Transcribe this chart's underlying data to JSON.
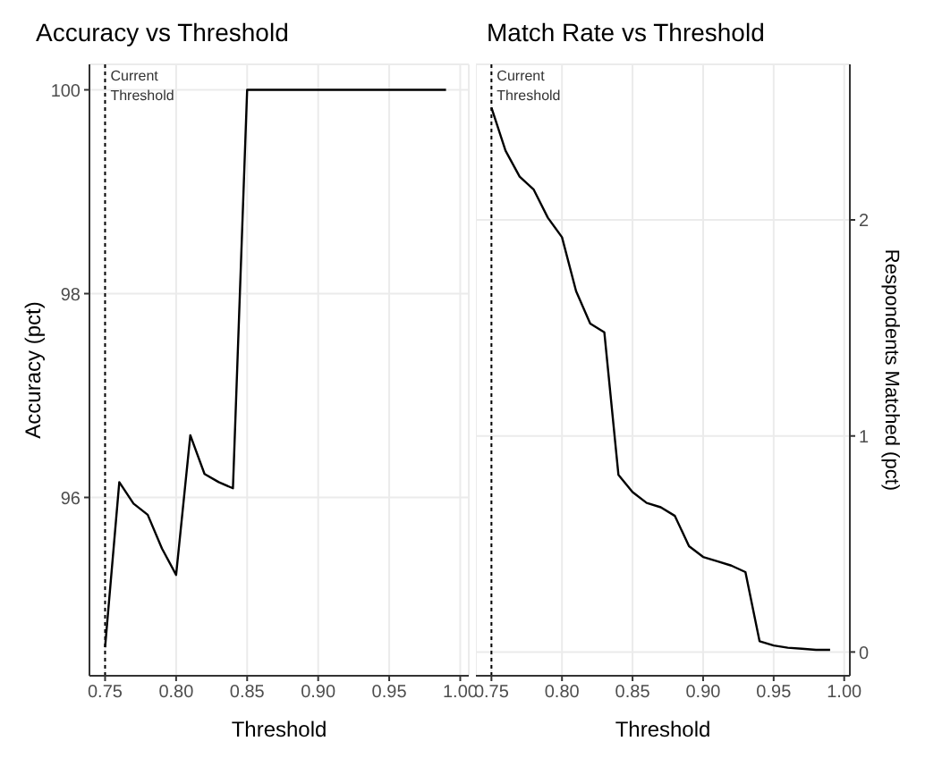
{
  "chart_data": [
    {
      "type": "line",
      "title": "Accuracy vs Threshold",
      "xlabel": "Threshold",
      "ylabel": "Accuracy (pct)",
      "x": [
        0.75,
        0.76,
        0.77,
        0.78,
        0.79,
        0.8,
        0.81,
        0.82,
        0.83,
        0.84,
        0.85,
        0.86,
        0.87,
        0.88,
        0.89,
        0.9,
        0.91,
        0.92,
        0.93,
        0.94,
        0.95,
        0.96,
        0.97,
        0.98,
        0.99
      ],
      "series": [
        {
          "color": "#000000",
          "values": [
            94.53,
            96.15,
            95.94,
            95.83,
            95.5,
            95.24,
            96.61,
            96.23,
            96.15,
            96.09,
            100,
            100,
            100,
            100,
            100,
            100,
            100,
            100,
            100,
            100,
            100,
            100,
            100,
            100,
            100
          ]
        }
      ],
      "xlim": [
        0.739,
        1.006
      ],
      "xticks": [
        0.75,
        {
          "value": 0.8,
          "label": "0.80"
        },
        0.85,
        {
          "value": 0.9,
          "label": "0.90"
        },
        0.95,
        {
          "value": 1,
          "label": "1.00"
        }
      ],
      "ylim": [
        94.25,
        100.25
      ],
      "yticks": [
        96,
        98,
        100
      ],
      "grid": true,
      "line_style": "solid",
      "ref_lines": [
        {
          "axis": "x",
          "value": 0.75,
          "label": "Current Threshold",
          "line_style": "dotted",
          "color": "#000000"
        }
      ]
    },
    {
      "type": "line",
      "title": "Match Rate vs Threshold",
      "xlabel": "Threshold",
      "y2label": "Respondents Matched (pct)",
      "x": [
        0.75,
        0.76,
        0.77,
        0.78,
        0.79,
        0.8,
        0.81,
        0.82,
        0.83,
        0.84,
        0.85,
        0.86,
        0.87,
        0.88,
        0.89,
        0.9,
        0.91,
        0.92,
        0.93,
        0.94,
        0.95,
        0.96,
        0.97,
        0.98,
        0.99
      ],
      "series": [
        {
          "color": "#000000",
          "axis": "y2",
          "values": [
            2.52,
            2.32,
            2.2,
            2.14,
            2.01,
            1.92,
            1.67,
            1.52,
            1.48,
            0.82,
            0.74,
            0.69,
            0.67,
            0.63,
            0.49,
            0.44,
            0.42,
            0.4,
            0.37,
            0.05,
            0.03,
            0.02,
            0.015,
            0.01,
            0.01
          ]
        }
      ],
      "xlim": [
        0.739,
        1.004
      ],
      "xticks": [
        0.75,
        {
          "value": 0.8,
          "label": "0.80"
        },
        0.85,
        {
          "value": 0.9,
          "label": "0.90"
        },
        0.95,
        {
          "value": 1,
          "label": "1.00"
        }
      ],
      "y2lim": [
        -0.11,
        2.72
      ],
      "y2ticks": [
        0,
        1,
        2
      ],
      "grid": true,
      "line_style": "solid",
      "ref_lines": [
        {
          "axis": "x",
          "value": 0.75,
          "label": "Current Threshold",
          "line_style": "dotted",
          "color": "#000000"
        }
      ]
    }
  ]
}
